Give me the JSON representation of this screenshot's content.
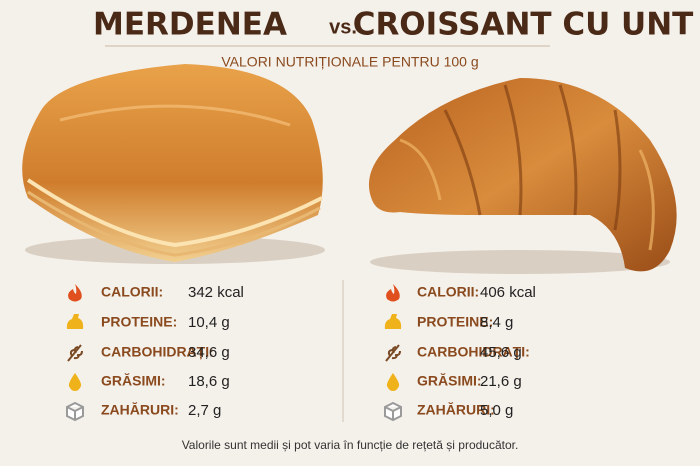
{
  "header": {
    "left_title": "MERDENEA",
    "vs": "vs.",
    "right_title": "CROISSANT CU UNT",
    "subtitle": "VALORI NUTRIȚIONALE PENTRU 100 g"
  },
  "columns": [
    {
      "rows": [
        {
          "label": "CALORII:",
          "value": "342 kcal"
        },
        {
          "label": "PROTEINE:",
          "value": "10,4 g"
        },
        {
          "label": "CARBOHIDRAȚI:",
          "value": "34,6 g"
        },
        {
          "label": "GRĂSIMI:",
          "value": "18,6 g"
        },
        {
          "label": "ZAHĂRURI:",
          "value": "2,7 g"
        }
      ]
    },
    {
      "rows": [
        {
          "label": "CALORII:",
          "value": "406 kcal"
        },
        {
          "label": "PROTEINE:",
          "value": "8,4 g"
        },
        {
          "label": "CARBOHIDRAȚI:",
          "value": "45,6 g"
        },
        {
          "label": "GRĂSIMI:",
          "value": "21,6 g"
        },
        {
          "label": "ZAHĂRURI:",
          "value": "5,0 g"
        }
      ]
    }
  ],
  "footnote": "Valorile sunt medii și pot varia în funcție de rețetă și producător."
}
